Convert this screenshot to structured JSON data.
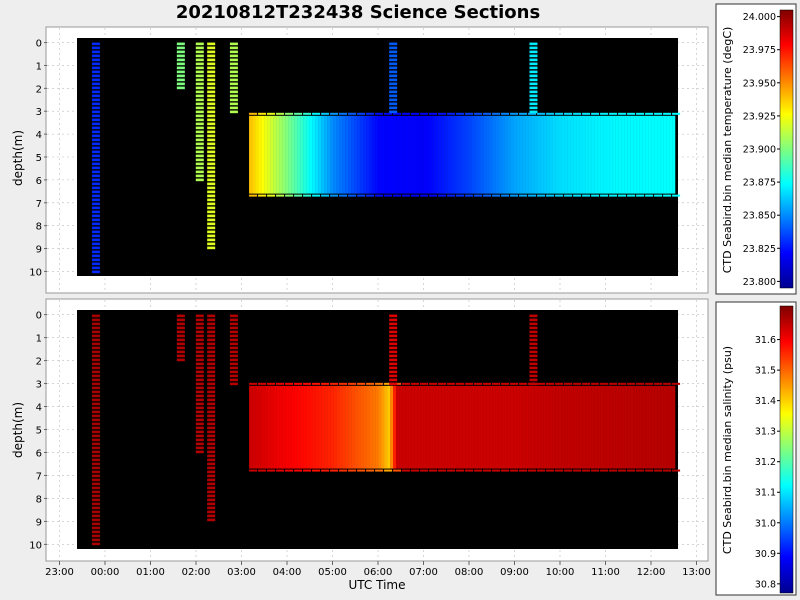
{
  "title": "20210812T232438 Science Sections",
  "colors": {
    "background": "#eeeeee",
    "plot_bg": "#000000",
    "frame": "#999999",
    "grid": "#bbbbbb"
  },
  "chart_data": [
    {
      "type": "heatmap",
      "ylabel": "depth(m)",
      "colorbar_label": "CTD Seabird.bin median temperature (degC)",
      "ylim": [
        10.2,
        -0.2
      ],
      "y_ticks": [
        "0",
        "1",
        "2",
        "3",
        "4",
        "5",
        "6",
        "7",
        "8",
        "9",
        "10"
      ],
      "x_ticks": [
        "23:00",
        "00:00",
        "01:00",
        "02:00",
        "03:00",
        "04:00",
        "05:00",
        "06:00",
        "07:00",
        "08:00",
        "09:00",
        "10:00",
        "11:00",
        "12:00",
        "13:00"
      ],
      "colorbar_ticks": [
        "24.000",
        "23.975",
        "23.950",
        "23.925",
        "23.900",
        "23.875",
        "23.850",
        "23.825",
        "23.800"
      ],
      "colorbar_range": [
        23.795,
        24.005
      ],
      "colormap": "jet",
      "profiles": [
        {
          "time": "23:48",
          "depth_range": [
            0,
            10
          ],
          "value": 23.83
        },
        {
          "time": "01:40",
          "depth_range": [
            0,
            2
          ],
          "value": 23.9
        },
        {
          "time": "02:05",
          "depth_range": [
            0,
            6
          ],
          "value": 23.91
        },
        {
          "time": "02:20",
          "depth_range": [
            0,
            9
          ],
          "value": 23.92
        },
        {
          "time": "02:50",
          "depth_range": [
            0,
            3
          ],
          "value": 23.91
        },
        {
          "time": "06:20",
          "depth_range": [
            0,
            3
          ],
          "value": 23.84
        },
        {
          "time": "09:25",
          "depth_range": [
            0,
            3
          ],
          "value": 23.87
        }
      ],
      "section": {
        "start": "03:10",
        "end": "12:30",
        "depth_range": [
          3.2,
          6.6
        ],
        "values": [
          {
            "time": "03:10",
            "value": 23.94
          },
          {
            "time": "04:00",
            "value": 23.9
          },
          {
            "time": "05:00",
            "value": 23.85
          },
          {
            "time": "06:00",
            "value": 23.822
          },
          {
            "time": "07:00",
            "value": 23.82
          },
          {
            "time": "08:00",
            "value": 23.835
          },
          {
            "time": "09:00",
            "value": 23.855
          },
          {
            "time": "10:00",
            "value": 23.867
          },
          {
            "time": "11:00",
            "value": 23.872
          },
          {
            "time": "12:30",
            "value": 23.874
          }
        ]
      }
    },
    {
      "type": "heatmap",
      "ylabel": "depth(m)",
      "xlabel": "UTC Time",
      "colorbar_label": "CTD Seabird.bin median salinity (psu)",
      "ylim": [
        10.2,
        -0.2
      ],
      "y_ticks": [
        "0",
        "1",
        "2",
        "3",
        "4",
        "5",
        "6",
        "7",
        "8",
        "9",
        "10"
      ],
      "x_ticks": [
        "23:00",
        "00:00",
        "01:00",
        "02:00",
        "03:00",
        "04:00",
        "05:00",
        "06:00",
        "07:00",
        "08:00",
        "09:00",
        "10:00",
        "11:00",
        "12:00",
        "13:00"
      ],
      "colorbar_ticks": [
        "31.6",
        "31.5",
        "31.4",
        "31.3",
        "31.2",
        "31.1",
        "31.0",
        "30.9",
        "30.8"
      ],
      "colorbar_range": [
        30.77,
        31.71
      ],
      "colormap": "jet",
      "profiles": [
        {
          "time": "23:48",
          "depth_range": [
            0,
            10
          ],
          "value": 31.67
        },
        {
          "time": "01:40",
          "depth_range": [
            0,
            2
          ],
          "value": 31.66
        },
        {
          "time": "02:05",
          "depth_range": [
            0,
            6
          ],
          "value": 31.66
        },
        {
          "time": "02:20",
          "depth_range": [
            0,
            9
          ],
          "value": 31.66
        },
        {
          "time": "02:50",
          "depth_range": [
            0,
            3
          ],
          "value": 31.66
        },
        {
          "time": "06:20",
          "depth_range": [
            0,
            3
          ],
          "value": 31.62
        },
        {
          "time": "09:25",
          "depth_range": [
            0,
            3
          ],
          "value": 31.65
        }
      ],
      "section": {
        "start": "03:10",
        "end": "12:30",
        "depth_range": [
          3.1,
          6.7
        ],
        "values": [
          {
            "time": "03:10",
            "value": 31.64
          },
          {
            "time": "04:00",
            "value": 31.6
          },
          {
            "time": "05:00",
            "value": 31.56
          },
          {
            "time": "06:00",
            "value": 31.48
          },
          {
            "time": "06:15",
            "value": 31.4
          },
          {
            "time": "06:25",
            "value": 31.64
          },
          {
            "time": "09:00",
            "value": 31.64
          },
          {
            "time": "10:00",
            "value": 31.65
          },
          {
            "time": "12:30",
            "value": 31.66
          }
        ]
      }
    }
  ]
}
